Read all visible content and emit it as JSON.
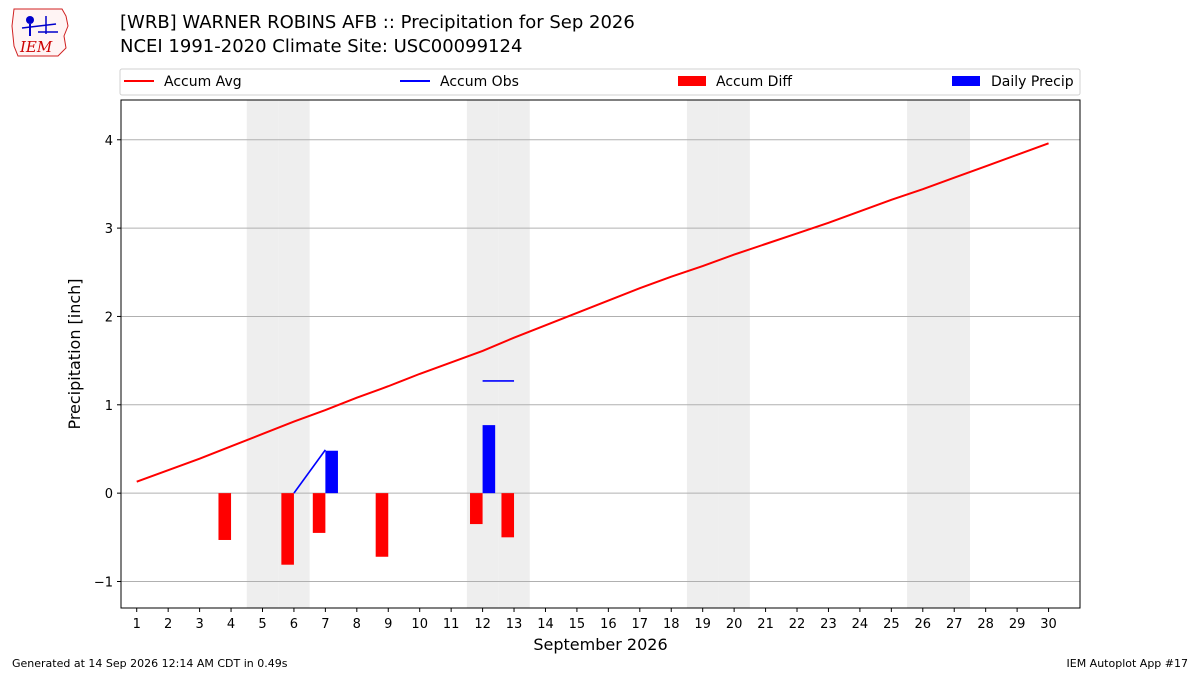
{
  "logo": {
    "text": "IEM"
  },
  "header": {
    "title_line1": "[WRB] WARNER ROBINS AFB :: Precipitation for Sep 2026",
    "title_line2": "NCEI 1991-2020 Climate Site: USC00099124"
  },
  "footer": {
    "generated": "Generated at 14 Sep 2026 12:14 AM CDT in 0.49s",
    "app": "IEM Autoplot App #17"
  },
  "colors": {
    "avg": "#ff0000",
    "obs": "#0000ff",
    "diff": "#ff0000",
    "daily": "#0000ff",
    "weekend": "#eeeeee",
    "grid": "#b0b0b0"
  },
  "chart_data": {
    "type": "bar",
    "title": "[WRB] WARNER ROBINS AFB :: Precipitation for Sep 2026",
    "subtitle": "NCEI 1991-2020 Climate Site: USC00099124",
    "xlabel": "September 2026",
    "ylabel": "Precipitation [inch]",
    "xlim": [
      0.5,
      31
    ],
    "ylim": [
      -1.3,
      4.45
    ],
    "yticks": [
      -1,
      0,
      1,
      2,
      3,
      4
    ],
    "ytick_labels": [
      "−1",
      "0",
      "1",
      "2",
      "3",
      "4"
    ],
    "days": [
      1,
      2,
      3,
      4,
      5,
      6,
      7,
      8,
      9,
      10,
      11,
      12,
      13,
      14,
      15,
      16,
      17,
      18,
      19,
      20,
      21,
      22,
      23,
      24,
      25,
      26,
      27,
      28,
      29,
      30
    ],
    "weekend_days": [
      5,
      6,
      12,
      13,
      19,
      20,
      26,
      27
    ],
    "grid": "horizontal",
    "legend_position": "top",
    "legend": [
      {
        "label": "Accum Avg",
        "kind": "line",
        "color": "#ff0000"
      },
      {
        "label": "Accum Obs",
        "kind": "line",
        "color": "#0000ff"
      },
      {
        "label": "Accum Diff",
        "kind": "bar",
        "color": "#ff0000"
      },
      {
        "label": "Daily Precip",
        "kind": "bar",
        "color": "#0000ff"
      }
    ],
    "series": [
      {
        "name": "Accum Avg",
        "type": "line",
        "x": [
          1,
          2,
          3,
          4,
          5,
          6,
          7,
          8,
          9,
          10,
          11,
          12,
          13,
          14,
          15,
          16,
          17,
          18,
          19,
          20,
          21,
          22,
          23,
          24,
          25,
          26,
          27,
          28,
          29,
          30
        ],
        "values": [
          0.13,
          0.26,
          0.39,
          0.53,
          0.67,
          0.81,
          0.94,
          1.08,
          1.21,
          1.35,
          1.48,
          1.61,
          1.76,
          1.9,
          2.04,
          2.18,
          2.32,
          2.45,
          2.57,
          2.7,
          2.82,
          2.94,
          3.06,
          3.19,
          3.32,
          3.44,
          3.57,
          3.7,
          3.83,
          3.96
        ]
      },
      {
        "name": "Accum Obs",
        "type": "line",
        "x": [
          6,
          7,
          12,
          13
        ],
        "values": [
          0.0,
          0.49,
          1.27,
          1.27
        ]
      },
      {
        "name": "Accum Diff",
        "type": "bar",
        "x": [
          4,
          6,
          7,
          9,
          12,
          13
        ],
        "values": [
          -0.53,
          -0.81,
          -0.45,
          -0.72,
          -0.35,
          -0.5
        ]
      },
      {
        "name": "Daily Precip",
        "type": "bar",
        "x": [
          7,
          12
        ],
        "values": [
          0.48,
          0.77
        ]
      }
    ]
  }
}
